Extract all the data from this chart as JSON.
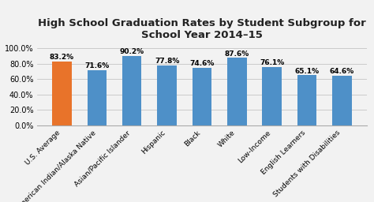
{
  "title": "High School Graduation Rates by Student Subgroup for\nSchool Year 2014–15",
  "categories": [
    "U.S. Average",
    "American Indian/Alaska Native",
    "Asian/Pacific Islander",
    "Hispanic",
    "Black",
    "White",
    "Low-Income",
    "English Learners",
    "Students with Disabilities"
  ],
  "values": [
    83.2,
    71.6,
    90.2,
    77.8,
    74.6,
    87.6,
    76.1,
    65.1,
    64.6
  ],
  "bar_colors": [
    "#E8732A",
    "#4E90C8",
    "#4E90C8",
    "#4E90C8",
    "#4E90C8",
    "#4E90C8",
    "#4E90C8",
    "#4E90C8",
    "#4E90C8"
  ],
  "ylim": [
    0,
    105
  ],
  "yticks": [
    0,
    20,
    40,
    60,
    80,
    100
  ],
  "ytick_labels": [
    "0.0%",
    "20.0%",
    "40.0%",
    "60.0%",
    "80.0%",
    "100.0%"
  ],
  "background_color": "#F2F2F2",
  "plot_bg_color": "#F2F2F2",
  "title_fontsize": 9.5,
  "label_fontsize": 6.5,
  "tick_fontsize": 7,
  "bar_label_fontsize": 6.5,
  "bar_width": 0.55
}
